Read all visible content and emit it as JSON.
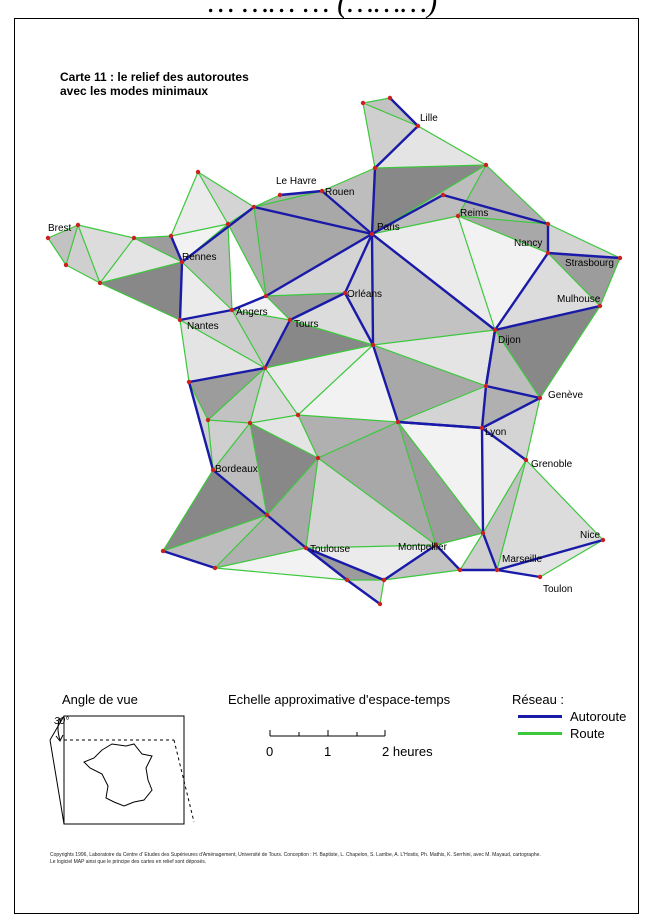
{
  "header": {
    "partial_title": "… …… … (………)"
  },
  "map": {
    "title_line1": "Carte 11 : le relief des autoroutes",
    "title_line2": "avec les modes minimaux",
    "cities": [
      "Lille",
      "Rouen",
      "Le Havre",
      "Paris",
      "Reims",
      "Brest",
      "Rennes",
      "Nancy",
      "Strasbourg",
      "Orléans",
      "Mulhouse",
      "Angers",
      "Nantes",
      "Tours",
      "Dijon",
      "Genève",
      "Lyon",
      "Bordeaux",
      "Grenoble",
      "Montpellier",
      "Toulouse",
      "Marseille",
      "Nice",
      "Toulon"
    ],
    "colors": {
      "autoroute": "#1a1aa8",
      "route": "#3cc83c",
      "node": "#cc2020"
    }
  },
  "legend": {
    "angle_title": "Angle de vue",
    "angle_value": "30°",
    "scale_title": "Echelle approximative d'espace-temps",
    "scale_ticks": [
      "0",
      "1",
      "2 heures"
    ],
    "reseau_title": "Réseau :",
    "autoroute_label": "Autoroute",
    "route_label": "Route"
  },
  "credits": {
    "line1": "Copyrights 1996, Laboratoire du Centre d' Etudes des Supérieures d'Aménagement, Université de Tours. Conception : H. Baptiste, L. Chapelon, S. Larribe, A. L'Hostis, Ph. Mathis, K. Serrhini, avec M. Mayaud, cartographe.",
    "line2": "Le logiciel MAP ainsi que le principe des cartes en relief sont déposés."
  }
}
